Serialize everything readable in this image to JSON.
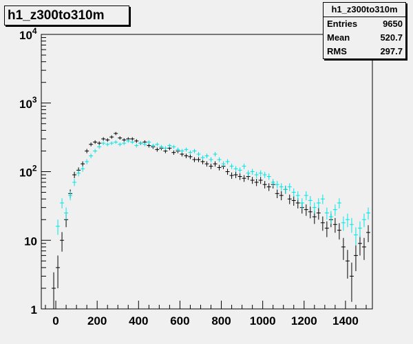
{
  "histogram_title": "h1_z300to310m",
  "stats": {
    "title": "h1_z300to310m",
    "rows": [
      {
        "label": "Entries",
        "value": "9650"
      },
      {
        "label": "Mean",
        "value": "520.7"
      },
      {
        "label": "RMS",
        "value": "297.7"
      }
    ]
  },
  "colors": {
    "background": "#f0f0f0",
    "series_black": "#000000",
    "series_cyan": "#00e5e5",
    "frame": "#000000"
  },
  "chart_data": {
    "type": "scatter",
    "title": "h1_z300to310m",
    "xlabel": "",
    "ylabel": "",
    "xlim": [
      -70,
      1530
    ],
    "ylim": [
      1,
      10000
    ],
    "yscale": "log",
    "x_ticks": [
      "0",
      "200",
      "400",
      "600",
      "800",
      "1000",
      "1200",
      "1400"
    ],
    "x_tick_values": [
      0,
      200,
      400,
      600,
      800,
      1000,
      1200,
      1400
    ],
    "y_tick_values": [
      1,
      10,
      100,
      1000,
      10000
    ],
    "y_tick_labels": [
      {
        "base": "1",
        "exp": ""
      },
      {
        "base": "10",
        "exp": ""
      },
      {
        "base": "10",
        "exp": "2"
      },
      {
        "base": "10",
        "exp": "3"
      },
      {
        "base": "10",
        "exp": "4"
      }
    ],
    "grid": false,
    "legend": false,
    "series": [
      {
        "color": "#000000",
        "x": [
          -10,
          10,
          30,
          50,
          70,
          90,
          110,
          130,
          150,
          170,
          190,
          210,
          230,
          250,
          270,
          290,
          310,
          330,
          350,
          370,
          390,
          410,
          430,
          450,
          470,
          490,
          510,
          530,
          550,
          570,
          590,
          610,
          630,
          650,
          670,
          690,
          710,
          730,
          750,
          770,
          790,
          810,
          830,
          850,
          870,
          890,
          910,
          930,
          950,
          970,
          990,
          1010,
          1030,
          1050,
          1070,
          1090,
          1110,
          1130,
          1150,
          1170,
          1190,
          1210,
          1230,
          1250,
          1270,
          1290,
          1310,
          1330,
          1350,
          1370,
          1390,
          1410,
          1430,
          1450,
          1470,
          1490,
          1510
        ],
        "y": [
          2,
          4,
          10,
          20,
          48,
          90,
          105,
          130,
          200,
          250,
          270,
          260,
          300,
          290,
          320,
          360,
          310,
          290,
          300,
          300,
          280,
          260,
          270,
          240,
          230,
          210,
          220,
          200,
          220,
          190,
          200,
          180,
          170,
          165,
          150,
          150,
          140,
          130,
          120,
          130,
          115,
          120,
          100,
          88,
          90,
          85,
          80,
          85,
          75,
          70,
          75,
          65,
          60,
          65,
          48,
          45,
          55,
          40,
          38,
          35,
          30,
          28,
          26,
          22,
          25,
          18,
          15,
          20,
          17,
          14,
          8,
          5,
          3,
          6,
          9,
          8,
          13
        ]
      },
      {
        "color": "#00e5e5",
        "x": [
          -10,
          10,
          30,
          50,
          70,
          90,
          110,
          130,
          150,
          170,
          190,
          210,
          230,
          250,
          270,
          290,
          310,
          330,
          350,
          370,
          390,
          410,
          430,
          450,
          470,
          490,
          510,
          530,
          550,
          570,
          590,
          610,
          630,
          650,
          670,
          690,
          710,
          730,
          750,
          770,
          790,
          810,
          830,
          850,
          870,
          890,
          910,
          930,
          950,
          970,
          990,
          1010,
          1030,
          1050,
          1070,
          1090,
          1110,
          1130,
          1150,
          1170,
          1190,
          1210,
          1230,
          1250,
          1270,
          1290,
          1310,
          1330,
          1350,
          1370,
          1390,
          1410,
          1430,
          1450,
          1470,
          1490,
          1510
        ],
        "y": [
          0,
          16,
          35,
          25,
          45,
          70,
          95,
          110,
          140,
          170,
          200,
          230,
          260,
          250,
          260,
          270,
          250,
          260,
          280,
          270,
          240,
          260,
          250,
          270,
          240,
          250,
          230,
          220,
          240,
          230,
          210,
          200,
          210,
          190,
          200,
          180,
          160,
          170,
          150,
          180,
          150,
          130,
          140,
          120,
          110,
          105,
          120,
          95,
          100,
          90,
          95,
          90,
          85,
          70,
          65,
          60,
          55,
          60,
          50,
          45,
          35,
          45,
          38,
          30,
          35,
          40,
          25,
          22,
          28,
          35,
          18,
          20,
          17,
          12,
          15,
          20,
          25
        ]
      }
    ]
  }
}
